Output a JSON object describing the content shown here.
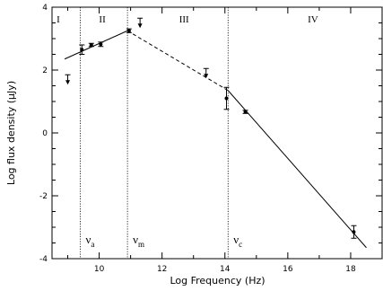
{
  "chart_data": {
    "type": "scatter",
    "xlabel": "Log Frequency (Hz)",
    "ylabel": "Log flux density (μJy)",
    "xlim": [
      8.5,
      19.0
    ],
    "ylim": [
      -4,
      4
    ],
    "xticks": [
      10,
      12,
      14,
      16,
      18
    ],
    "yticks": [
      -4,
      -2,
      0,
      2,
      4
    ],
    "xtick_labels": [
      "10",
      "12",
      "14",
      "16",
      "18"
    ],
    "ytick_labels": [
      "-4",
      "-2",
      "0",
      "2",
      "4"
    ],
    "grid": false,
    "regions": [
      {
        "label": "I",
        "x": 8.7
      },
      {
        "label": "II",
        "x": 10.1
      },
      {
        "label": "III",
        "x": 12.7
      },
      {
        "label": "IV",
        "x": 16.8
      }
    ],
    "breaks": [
      {
        "x": 9.4,
        "symbol": "ν",
        "sub": "a"
      },
      {
        "x": 10.9,
        "symbol": "ν",
        "sub": "m"
      },
      {
        "x": 14.1,
        "symbol": "ν",
        "sub": "c"
      }
    ],
    "model_segments": [
      {
        "x": [
          8.9,
          10.9
        ],
        "y": [
          2.35,
          3.25
        ],
        "style": "solid"
      },
      {
        "x": [
          10.9,
          14.1
        ],
        "y": [
          3.25,
          1.35
        ],
        "style": "dashed"
      },
      {
        "x": [
          14.1,
          18.5
        ],
        "y": [
          1.35,
          -3.65
        ],
        "style": "solid"
      }
    ],
    "detections": [
      {
        "x": 9.45,
        "y": 2.65,
        "err": 0.15
      },
      {
        "x": 9.75,
        "y": 2.8,
        "err": 0.05
      },
      {
        "x": 10.05,
        "y": 2.82,
        "err": 0.07
      },
      {
        "x": 10.95,
        "y": 3.25,
        "err": 0.06
      },
      {
        "x": 14.05,
        "y": 1.1,
        "err": 0.35
      },
      {
        "x": 14.65,
        "y": 0.67,
        "err": 0.05
      },
      {
        "x": 18.1,
        "y": -3.15,
        "err": 0.2
      }
    ],
    "upper_limits": [
      {
        "x": 9.0,
        "y": 1.85
      },
      {
        "x": 11.3,
        "y": 3.65
      },
      {
        "x": 13.4,
        "y": 2.05
      }
    ]
  }
}
